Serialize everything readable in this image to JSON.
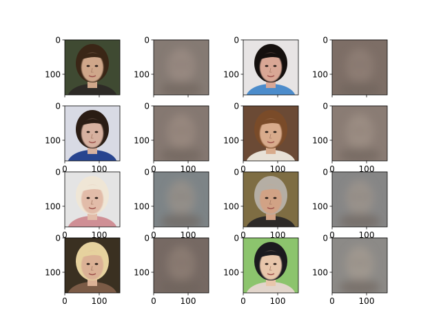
{
  "figure": {
    "background": "#ffffff"
  },
  "chart_data": {
    "type": "image-grid",
    "title": "",
    "rows": 4,
    "cols": 4,
    "image_extent": [
      0,
      160
    ],
    "xticks": [
      0,
      100
    ],
    "yticks": [
      0,
      100
    ],
    "column_kinds": [
      "original-photo",
      "reconstruction",
      "original-photo",
      "reconstruction"
    ],
    "panels": [
      {
        "kind": "photo",
        "bg": "#3f4a32",
        "skin": "#cfa78a",
        "hair": "#3a2616",
        "shirt": "#2d2a26",
        "show_xticks": false
      },
      {
        "kind": "recon",
        "bg": "#857a73",
        "face": "#9a8b82",
        "show_xticks": false
      },
      {
        "kind": "photo",
        "bg": "#e7e4e4",
        "skin": "#d9a795",
        "hair": "#15100e",
        "shirt": "#4c8ccb",
        "show_xticks": false
      },
      {
        "kind": "recon",
        "bg": "#7d6e66",
        "face": "#8f7f75",
        "show_xticks": false
      },
      {
        "kind": "photo",
        "bg": "#d8dae4",
        "skin": "#d7b1a0",
        "hair": "#2a1c14",
        "shirt": "#27448f",
        "show_xticks": true
      },
      {
        "kind": "recon",
        "bg": "#857871",
        "face": "#9a8a80",
        "show_xticks": true
      },
      {
        "kind": "photo",
        "bg": "#6b4a35",
        "skin": "#d8ab8c",
        "hair": "#7a4b29",
        "shirt": "#e8e1d6",
        "show_xticks": true
      },
      {
        "kind": "recon",
        "bg": "#8a7c74",
        "face": "#9e8f85",
        "show_xticks": true
      },
      {
        "kind": "photo",
        "bg": "#e4e4e4",
        "skin": "#e2bca9",
        "hair": "#efe6d6",
        "shirt": "#cf8f95",
        "show_xticks": true
      },
      {
        "kind": "recon",
        "bg": "#7d8487",
        "face": "#969089",
        "show_xticks": true
      },
      {
        "kind": "photo",
        "bg": "#7e6d43",
        "skin": "#d1a285",
        "hair": "#b5aea4",
        "shirt": "#2d2a28",
        "show_xticks": true
      },
      {
        "kind": "recon",
        "bg": "#868686",
        "face": "#9c948c",
        "show_xticks": true
      },
      {
        "kind": "photo",
        "bg": "#3a3021",
        "skin": "#dbb195",
        "hair": "#e6d29e",
        "shirt": "#7b5b46",
        "show_xticks": true
      },
      {
        "kind": "recon",
        "bg": "#766963",
        "face": "#8d7e74",
        "show_xticks": true
      },
      {
        "kind": "photo",
        "bg": "#8cc46d",
        "skin": "#e8c6ab",
        "hair": "#1b1a1e",
        "shirt": "#e2d5cb",
        "show_xticks": true
      },
      {
        "kind": "recon",
        "bg": "#8c8a87",
        "face": "#a29a91",
        "show_xticks": true
      }
    ]
  }
}
